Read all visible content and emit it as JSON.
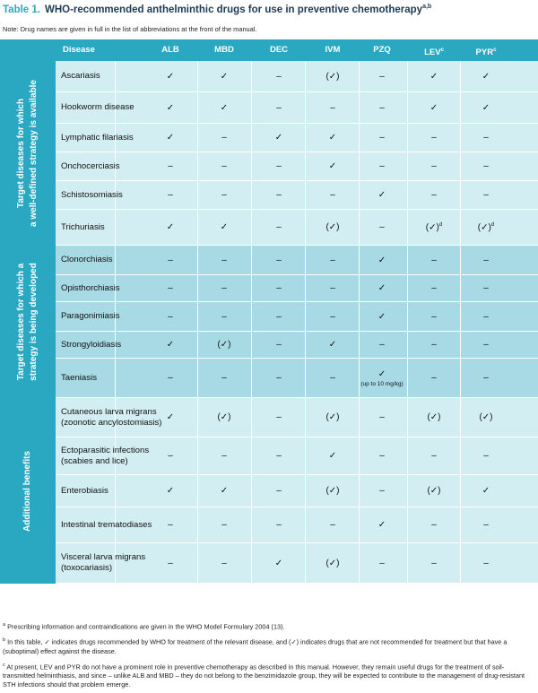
{
  "title": {
    "label": "Table 1.",
    "text": "WHO-recommended anthelminthic drugs for use in preventive chemotherapy",
    "sup": "a,b"
  },
  "note": "Note: Drug names are given in full in the list of abbreviations at the front of the manual.",
  "header": {
    "disease": "Disease",
    "drugs": [
      {
        "label": "ALB",
        "sup": ""
      },
      {
        "label": "MBD",
        "sup": ""
      },
      {
        "label": "DEC",
        "sup": ""
      },
      {
        "label": "IVM",
        "sup": ""
      },
      {
        "label": "PZQ",
        "sup": ""
      },
      {
        "label": "LEV",
        "sup": "c"
      },
      {
        "label": "PYR",
        "sup": "c"
      }
    ]
  },
  "groups": [
    {
      "label_lines": [
        "Target diseases for which",
        "a well-defined strategy is available"
      ],
      "rows": [
        {
          "disease": "Ascariasis",
          "cells": [
            "✓",
            "✓",
            "–",
            "(✓)",
            "–",
            "✓",
            "✓"
          ]
        },
        {
          "disease": "Hookworm disease",
          "cells": [
            "✓",
            "✓",
            "–",
            "–",
            "–",
            "✓",
            "✓"
          ]
        },
        {
          "disease": "Lymphatic filariasis",
          "cells": [
            "✓",
            "–",
            "✓",
            "✓",
            "–",
            "–",
            "–"
          ]
        },
        {
          "disease": "Onchocerciasis",
          "cells": [
            "–",
            "–",
            "–",
            "✓",
            "–",
            "–",
            "–"
          ]
        },
        {
          "disease": "Schistosomiasis",
          "cells": [
            "–",
            "–",
            "–",
            "–",
            "✓",
            "–",
            "–"
          ]
        },
        {
          "disease": "Trichuriasis",
          "cells": [
            "✓",
            "✓",
            "–",
            "(✓)",
            "–",
            "(✓)",
            "(✓)"
          ],
          "sups": [
            "",
            "",
            "",
            "",
            "",
            "d",
            "d"
          ]
        }
      ]
    },
    {
      "label_lines": [
        "Target diseases for which a",
        "strategy is being developed"
      ],
      "rows": [
        {
          "disease": "Clonorchiasis",
          "cells": [
            "–",
            "–",
            "–",
            "–",
            "✓",
            "–",
            "–"
          ]
        },
        {
          "disease": "Opisthorchiasis",
          "cells": [
            "–",
            "–",
            "–",
            "–",
            "✓",
            "–",
            "–"
          ]
        },
        {
          "disease": "Paragonimiasis",
          "cells": [
            "–",
            "–",
            "–",
            "–",
            "✓",
            "–",
            "–"
          ]
        },
        {
          "disease": "Strongyloidiasis",
          "cells": [
            "✓",
            "(✓)",
            "–",
            "✓",
            "–",
            "–",
            "–"
          ]
        },
        {
          "disease": "Taeniasis",
          "cells": [
            "–",
            "–",
            "–",
            "–",
            "✓",
            "–",
            "–"
          ],
          "subs": [
            "",
            "",
            "",
            "",
            "(up to 10 mg/kg)",
            "",
            ""
          ]
        }
      ]
    },
    {
      "label_lines": [
        "Additional benefits"
      ],
      "rows": [
        {
          "disease": "Cutaneous larva migrans (zoonotic ancylostomiasis)",
          "cells": [
            "✓",
            "(✓)",
            "–",
            "(✓)",
            "–",
            "(✓)",
            "(✓)"
          ]
        },
        {
          "disease": "Ectoparasitic infections (scabies and lice)",
          "cells": [
            "–",
            "–",
            "–",
            "✓",
            "–",
            "–",
            "–"
          ]
        },
        {
          "disease": "Enterobiasis",
          "cells": [
            "✓",
            "✓",
            "–",
            "(✓)",
            "–",
            "(✓)",
            "✓"
          ]
        },
        {
          "disease": "Intestinal trematodiases",
          "cells": [
            "–",
            "–",
            "–",
            "–",
            "✓",
            "–",
            "–"
          ]
        },
        {
          "disease": "Visceral larva migrans (toxocariasis)",
          "cells": [
            "–",
            "–",
            "✓",
            "(✓)",
            "–",
            "–",
            "–"
          ]
        }
      ]
    }
  ],
  "footnotes": [
    {
      "mark": "a",
      "text": "Prescribing information and contraindications are given in the WHO Model Formulary 2004 (13)."
    },
    {
      "mark": "b",
      "text": "In this table, ✓ indicates drugs recommended by WHO for treatment of the relevant disease, and (✓) indicates drugs that are not recommended for treatment but that have a (suboptimal) effect against the disease."
    },
    {
      "mark": "c",
      "text": "At present, LEV and PYR do not have a prominent role in preventive chemotherapy as described in this manual. However, they remain useful drugs for the treatment of soil-transmitted helminthiasis, and since – unlike ALB and MBD – they do not belong to the benzimidazole group, they will be expected to contribute to the management of drug-resistant STH infections should that problem emerge."
    }
  ],
  "colors": {
    "header": "#2aa8c2",
    "row_light": "#d3eef3",
    "row_dark": "#a7dae5",
    "title_label": "#2aa7c1",
    "title_text": "#1e3a54"
  }
}
